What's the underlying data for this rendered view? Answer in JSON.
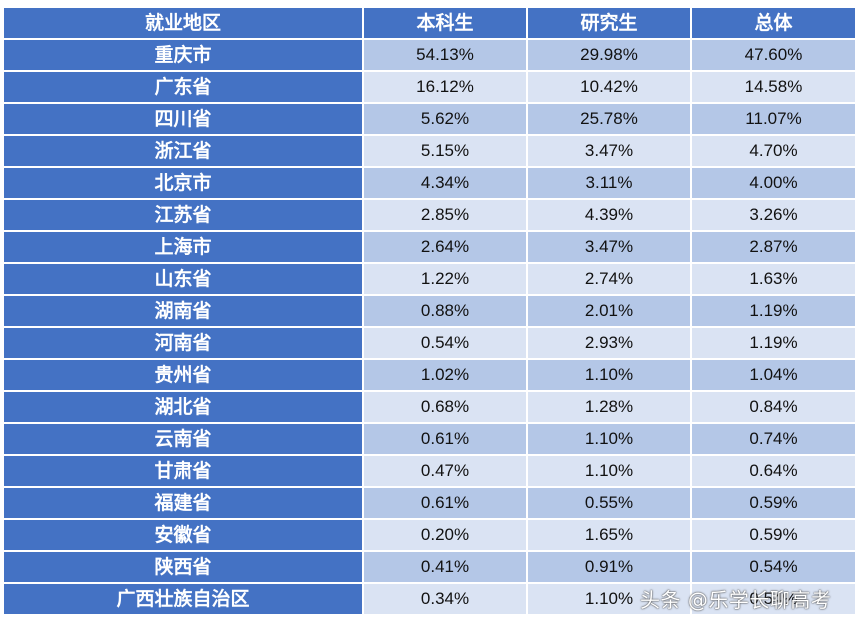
{
  "table": {
    "headers": [
      "就业地区",
      "本科生",
      "研究生",
      "总体"
    ],
    "rows": [
      {
        "region": "重庆市",
        "undergrad": "54.13%",
        "graduate": "29.98%",
        "overall": "47.60%"
      },
      {
        "region": "广东省",
        "undergrad": "16.12%",
        "graduate": "10.42%",
        "overall": "14.58%"
      },
      {
        "region": "四川省",
        "undergrad": "5.62%",
        "graduate": "25.78%",
        "overall": "11.07%"
      },
      {
        "region": "浙江省",
        "undergrad": "5.15%",
        "graduate": "3.47%",
        "overall": "4.70%"
      },
      {
        "region": "北京市",
        "undergrad": "4.34%",
        "graduate": "3.11%",
        "overall": "4.00%"
      },
      {
        "region": "江苏省",
        "undergrad": "2.85%",
        "graduate": "4.39%",
        "overall": "3.26%"
      },
      {
        "region": "上海市",
        "undergrad": "2.64%",
        "graduate": "3.47%",
        "overall": "2.87%"
      },
      {
        "region": "山东省",
        "undergrad": "1.22%",
        "graduate": "2.74%",
        "overall": "1.63%"
      },
      {
        "region": "湖南省",
        "undergrad": "0.88%",
        "graduate": "2.01%",
        "overall": "1.19%"
      },
      {
        "region": "河南省",
        "undergrad": "0.54%",
        "graduate": "2.93%",
        "overall": "1.19%"
      },
      {
        "region": "贵州省",
        "undergrad": "1.02%",
        "graduate": "1.10%",
        "overall": "1.04%"
      },
      {
        "region": "湖北省",
        "undergrad": "0.68%",
        "graduate": "1.28%",
        "overall": "0.84%"
      },
      {
        "region": "云南省",
        "undergrad": "0.61%",
        "graduate": "1.10%",
        "overall": "0.74%"
      },
      {
        "region": "甘肃省",
        "undergrad": "0.47%",
        "graduate": "1.10%",
        "overall": "0.64%"
      },
      {
        "region": "福建省",
        "undergrad": "0.61%",
        "graduate": "0.55%",
        "overall": "0.59%"
      },
      {
        "region": "安徽省",
        "undergrad": "0.20%",
        "graduate": "1.65%",
        "overall": "0.59%"
      },
      {
        "region": "陕西省",
        "undergrad": "0.41%",
        "graduate": "0.91%",
        "overall": "0.54%"
      },
      {
        "region": "广西壮族自治区",
        "undergrad": "0.34%",
        "graduate": "1.10%",
        "overall": "0.54%"
      }
    ]
  },
  "watermark": "头条 @乐学长聊高考",
  "colors": {
    "header_bg": "#4472c4",
    "row_dark": "#b4c7e7",
    "row_light": "#dae3f3",
    "header_text": "#ffffff"
  }
}
